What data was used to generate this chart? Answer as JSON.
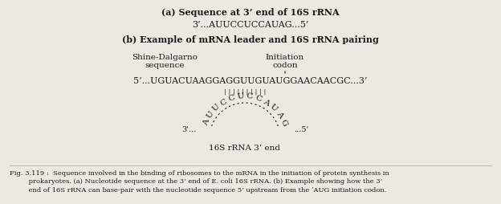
{
  "title_a": "(a) Sequence at 3’ end of 16S rRNA",
  "seq_a": "3’...AUUCCUCCAUAG...5’",
  "title_b": "(b) Example of mRNA leader and 16S rRNA pairing",
  "label_sd_line1": "Shine-Dalgarno",
  "label_sd_line2": "sequence",
  "label_init_line1": "Initiation",
  "label_init_line2": "codon",
  "mrna_seq": "5’...UGUACUAAGGAGGUUGUAUGGAACAACGC...3’",
  "rrna_seq": "AUUCCUCCAUAG",
  "pairs": "| | | | | | | | | |",
  "label_16s": "16S rRNA 3’ end",
  "caption_bold": "Fig. 3.119 :",
  "caption_text": "  Sequence involved in the binding of ribosomes to the mRNA in the initiation of protein synthesis in\n         prokaryotes. (a) Nucleotide sequence at the 3’ end of E. coli 16S rRNA. (b) Example showing how the 3’\n         end of 16S rRNA can base-pair with the nucleotide sequence 5’ upstream from the ʼAUG initiation codon.",
  "bg_color": "#ece9e2",
  "text_color": "#1a1a1a",
  "fig_width": 6.24,
  "fig_height": 2.54,
  "dpi": 100
}
